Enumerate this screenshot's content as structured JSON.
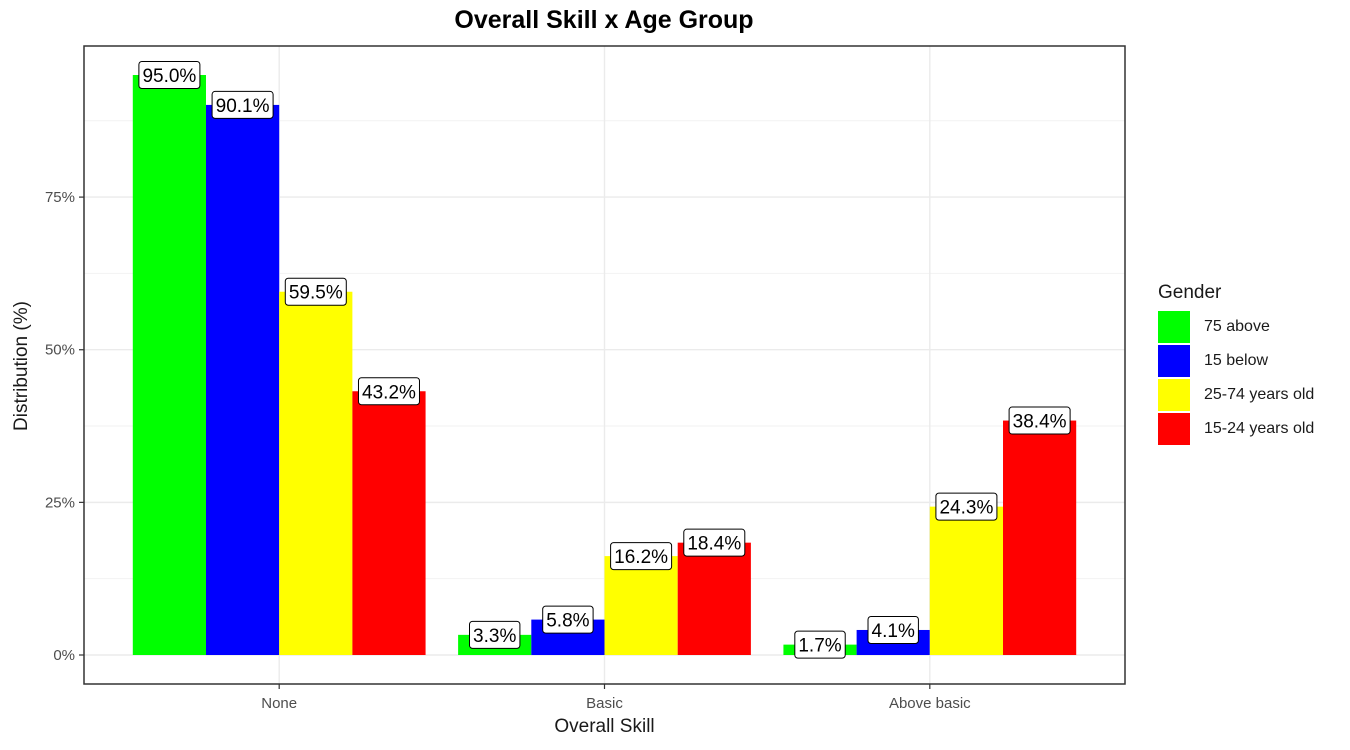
{
  "chart_data": {
    "type": "bar",
    "title": "Overall Skill x Age Group",
    "xlabel": "Overall Skill",
    "ylabel": "Distribution (%)",
    "categories": [
      "None",
      "Basic",
      "Above basic"
    ],
    "y_ticks": [
      0,
      25,
      50,
      75
    ],
    "y_tick_labels": [
      "0%",
      "25%",
      "50%",
      "75%"
    ],
    "ylim": [
      -4.75,
      99.75
    ],
    "grid": true,
    "legend_title": "Gender",
    "legend_position": "right",
    "series": [
      {
        "name": "75 above",
        "color": "#00FF00",
        "values": [
          95.0,
          3.3,
          1.7
        ],
        "labels": [
          "95.0%",
          "3.3%",
          "1.7%"
        ]
      },
      {
        "name": "15 below",
        "color": "#0000FF",
        "values": [
          90.1,
          5.8,
          4.1
        ],
        "labels": [
          "90.1%",
          "5.8%",
          "4.1%"
        ]
      },
      {
        "name": "25-74 years old",
        "color": "#FFFF00",
        "values": [
          59.5,
          16.2,
          24.3
        ],
        "labels": [
          "59.5%",
          "16.2%",
          "24.3%"
        ]
      },
      {
        "name": "15-24 years old",
        "color": "#FF0000",
        "values": [
          43.2,
          18.4,
          38.4
        ],
        "labels": [
          "43.2%",
          "18.4%",
          "38.4%"
        ]
      }
    ]
  }
}
